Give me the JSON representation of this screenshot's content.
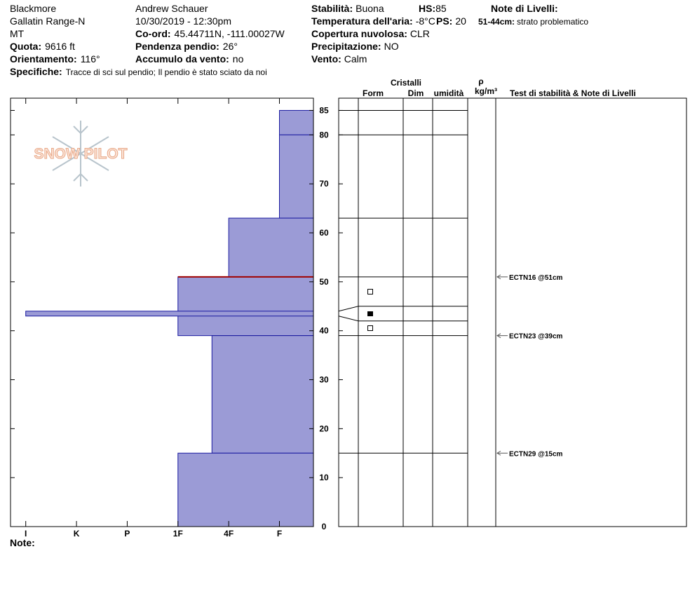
{
  "header": {
    "location": "Blackmore",
    "range": "Gallatin Range-N",
    "state": "MT",
    "observer": "Andrew Schauer",
    "datetime": "10/30/2019 - 12:30pm",
    "fields": [
      {
        "label": "Quota:",
        "value": "9616 ft"
      },
      {
        "label": "Orientamento:",
        "value": "116°"
      },
      {
        "label": "Specifiche:",
        "value": "Tracce di sci sul pendio;  Il pendio è stato sciato da noi"
      },
      {
        "label": "Co-ord:",
        "value": "45.44711N, -111.00027W"
      },
      {
        "label": "Pendenza pendio:",
        "value": "26°"
      },
      {
        "label": "Accumulo da vento:",
        "value": "no"
      },
      {
        "label": "Stabilità:",
        "value": "Buona"
      },
      {
        "label": "Temperatura dell'aria:",
        "value": "-8°C"
      },
      {
        "label": "Copertura nuvolosa:",
        "value": "CLR"
      },
      {
        "label": "Precipitazione:",
        "value": "NO"
      },
      {
        "label": "Vento:",
        "value": "Calm"
      },
      {
        "label": "HS:",
        "value": "85"
      },
      {
        "label": "PS:",
        "value": "20"
      }
    ],
    "layer_notes_title": "Note di Livelli:",
    "layer_note": {
      "label": "51-44cm:",
      "value": "strato problematico"
    }
  },
  "logo": "SNOW PILOT",
  "chart_data": {
    "type": "snow-profile",
    "ylim": [
      0,
      87.5
    ],
    "yticks": [
      0,
      10,
      20,
      30,
      40,
      50,
      60,
      70,
      80,
      85
    ],
    "xlim": [
      6.3,
      0.33
    ],
    "xticks": [
      {
        "value": 6,
        "label": "I"
      },
      {
        "value": 5,
        "label": "K"
      },
      {
        "value": 4,
        "label": "P"
      },
      {
        "value": 3,
        "label": "1F"
      },
      {
        "value": 2,
        "label": "4F"
      },
      {
        "value": 1,
        "label": "F"
      }
    ],
    "color": "#9b9bd6",
    "layers": [
      {
        "top": 85,
        "bottom": 80,
        "hardness": 1
      },
      {
        "top": 80,
        "bottom": 63,
        "hardness": 1
      },
      {
        "top": 63,
        "bottom": 51,
        "hardness": 2
      },
      {
        "top": 51,
        "bottom": 39,
        "hardness": 3
      },
      {
        "top": 44,
        "bottom": 43,
        "hardness": 6
      },
      {
        "top": 39,
        "bottom": 15,
        "hardness": 2.33
      },
      {
        "top": 15,
        "bottom": 0,
        "hardness": 3
      }
    ],
    "problem_layer": 51,
    "problem_color": "#a00000",
    "columns": {
      "crystals": "Cristalli",
      "form": "Form",
      "size": "Dim",
      "moisture": "umidità",
      "rho": "ρ",
      "density_unit": "kg/m³",
      "tests": "Test di stabilità & Note di Livelli"
    },
    "tests": [
      {
        "label": "ECTN16 @51cm",
        "depth": 51
      },
      {
        "label": "ECTN23 @39cm",
        "depth": 39
      },
      {
        "label": "ECTN29 @15cm",
        "depth": 15
      }
    ]
  },
  "note_label": "Note:"
}
